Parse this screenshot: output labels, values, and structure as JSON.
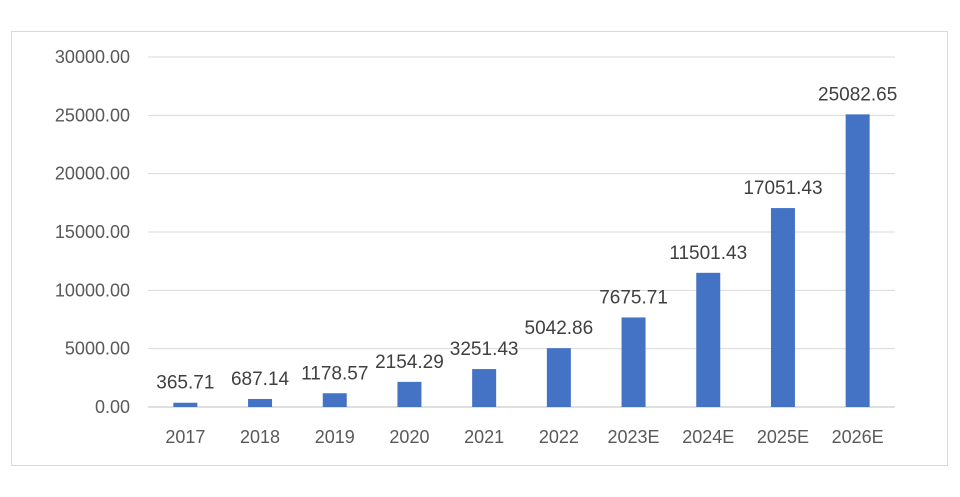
{
  "chart_data": {
    "type": "bar",
    "title": "",
    "xlabel": "",
    "ylabel": "",
    "categories": [
      "2017",
      "2018",
      "2019",
      "2020",
      "2021",
      "2022",
      "2023E",
      "2024E",
      "2025E",
      "2026E"
    ],
    "values": [
      365.71,
      687.14,
      1178.57,
      2154.29,
      3251.43,
      5042.86,
      7675.71,
      11501.43,
      17051.43,
      25082.65
    ],
    "data_labels": [
      "365.71",
      "687.14",
      "1178.57",
      "2154.29",
      "3251.43",
      "5042.86",
      "7675.71",
      "11501.43",
      "17051.43",
      "25082.65"
    ],
    "ylim": [
      0,
      30000
    ],
    "y_ticks": [
      0,
      5000,
      10000,
      15000,
      20000,
      25000,
      30000
    ],
    "y_tick_labels": [
      "0.00",
      "5000.00",
      "10000.00",
      "15000.00",
      "20000.00",
      "25000.00",
      "30000.00"
    ],
    "grid": true,
    "legend": "none",
    "bar_color": "#4472c4"
  }
}
